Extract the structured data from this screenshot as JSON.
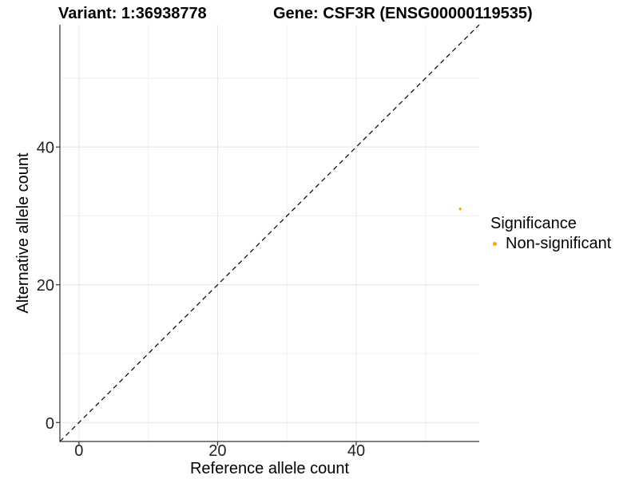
{
  "header": {
    "variant_title": "Variant: 1:36938778",
    "gene_title": "Gene: CSF3R (ENSG00000119535)"
  },
  "chart_data": {
    "type": "scatter",
    "xlabel": "Reference allele count",
    "ylabel": "Alternative allele count",
    "xlim": [
      0,
      55
    ],
    "ylim": [
      0,
      55
    ],
    "x_ticks": [
      0,
      20,
      40
    ],
    "y_ticks": [
      0,
      20,
      40
    ],
    "x_minor_ticks": [
      10,
      30,
      50
    ],
    "y_minor_ticks": [
      10,
      30,
      50
    ],
    "grid": true,
    "points": [
      {
        "x": 55,
        "y": 31,
        "significance": "Non-significant",
        "color": "#FFA500"
      }
    ],
    "abline": {
      "type": "identity",
      "slope": 1,
      "intercept": 0,
      "style": "dashed",
      "color": "#000000"
    },
    "legend": {
      "title": "Significance",
      "position": "right",
      "entries": [
        {
          "label": "Non-significant",
          "color": "#FFA500",
          "marker": "circle"
        }
      ]
    },
    "colors": {
      "axis_line": "#333333",
      "tick_mark": "#333333",
      "tick_text": "#222222",
      "grid_major": "#e4e4e4",
      "grid_minor": "#efefef",
      "background": "#ffffff"
    }
  }
}
